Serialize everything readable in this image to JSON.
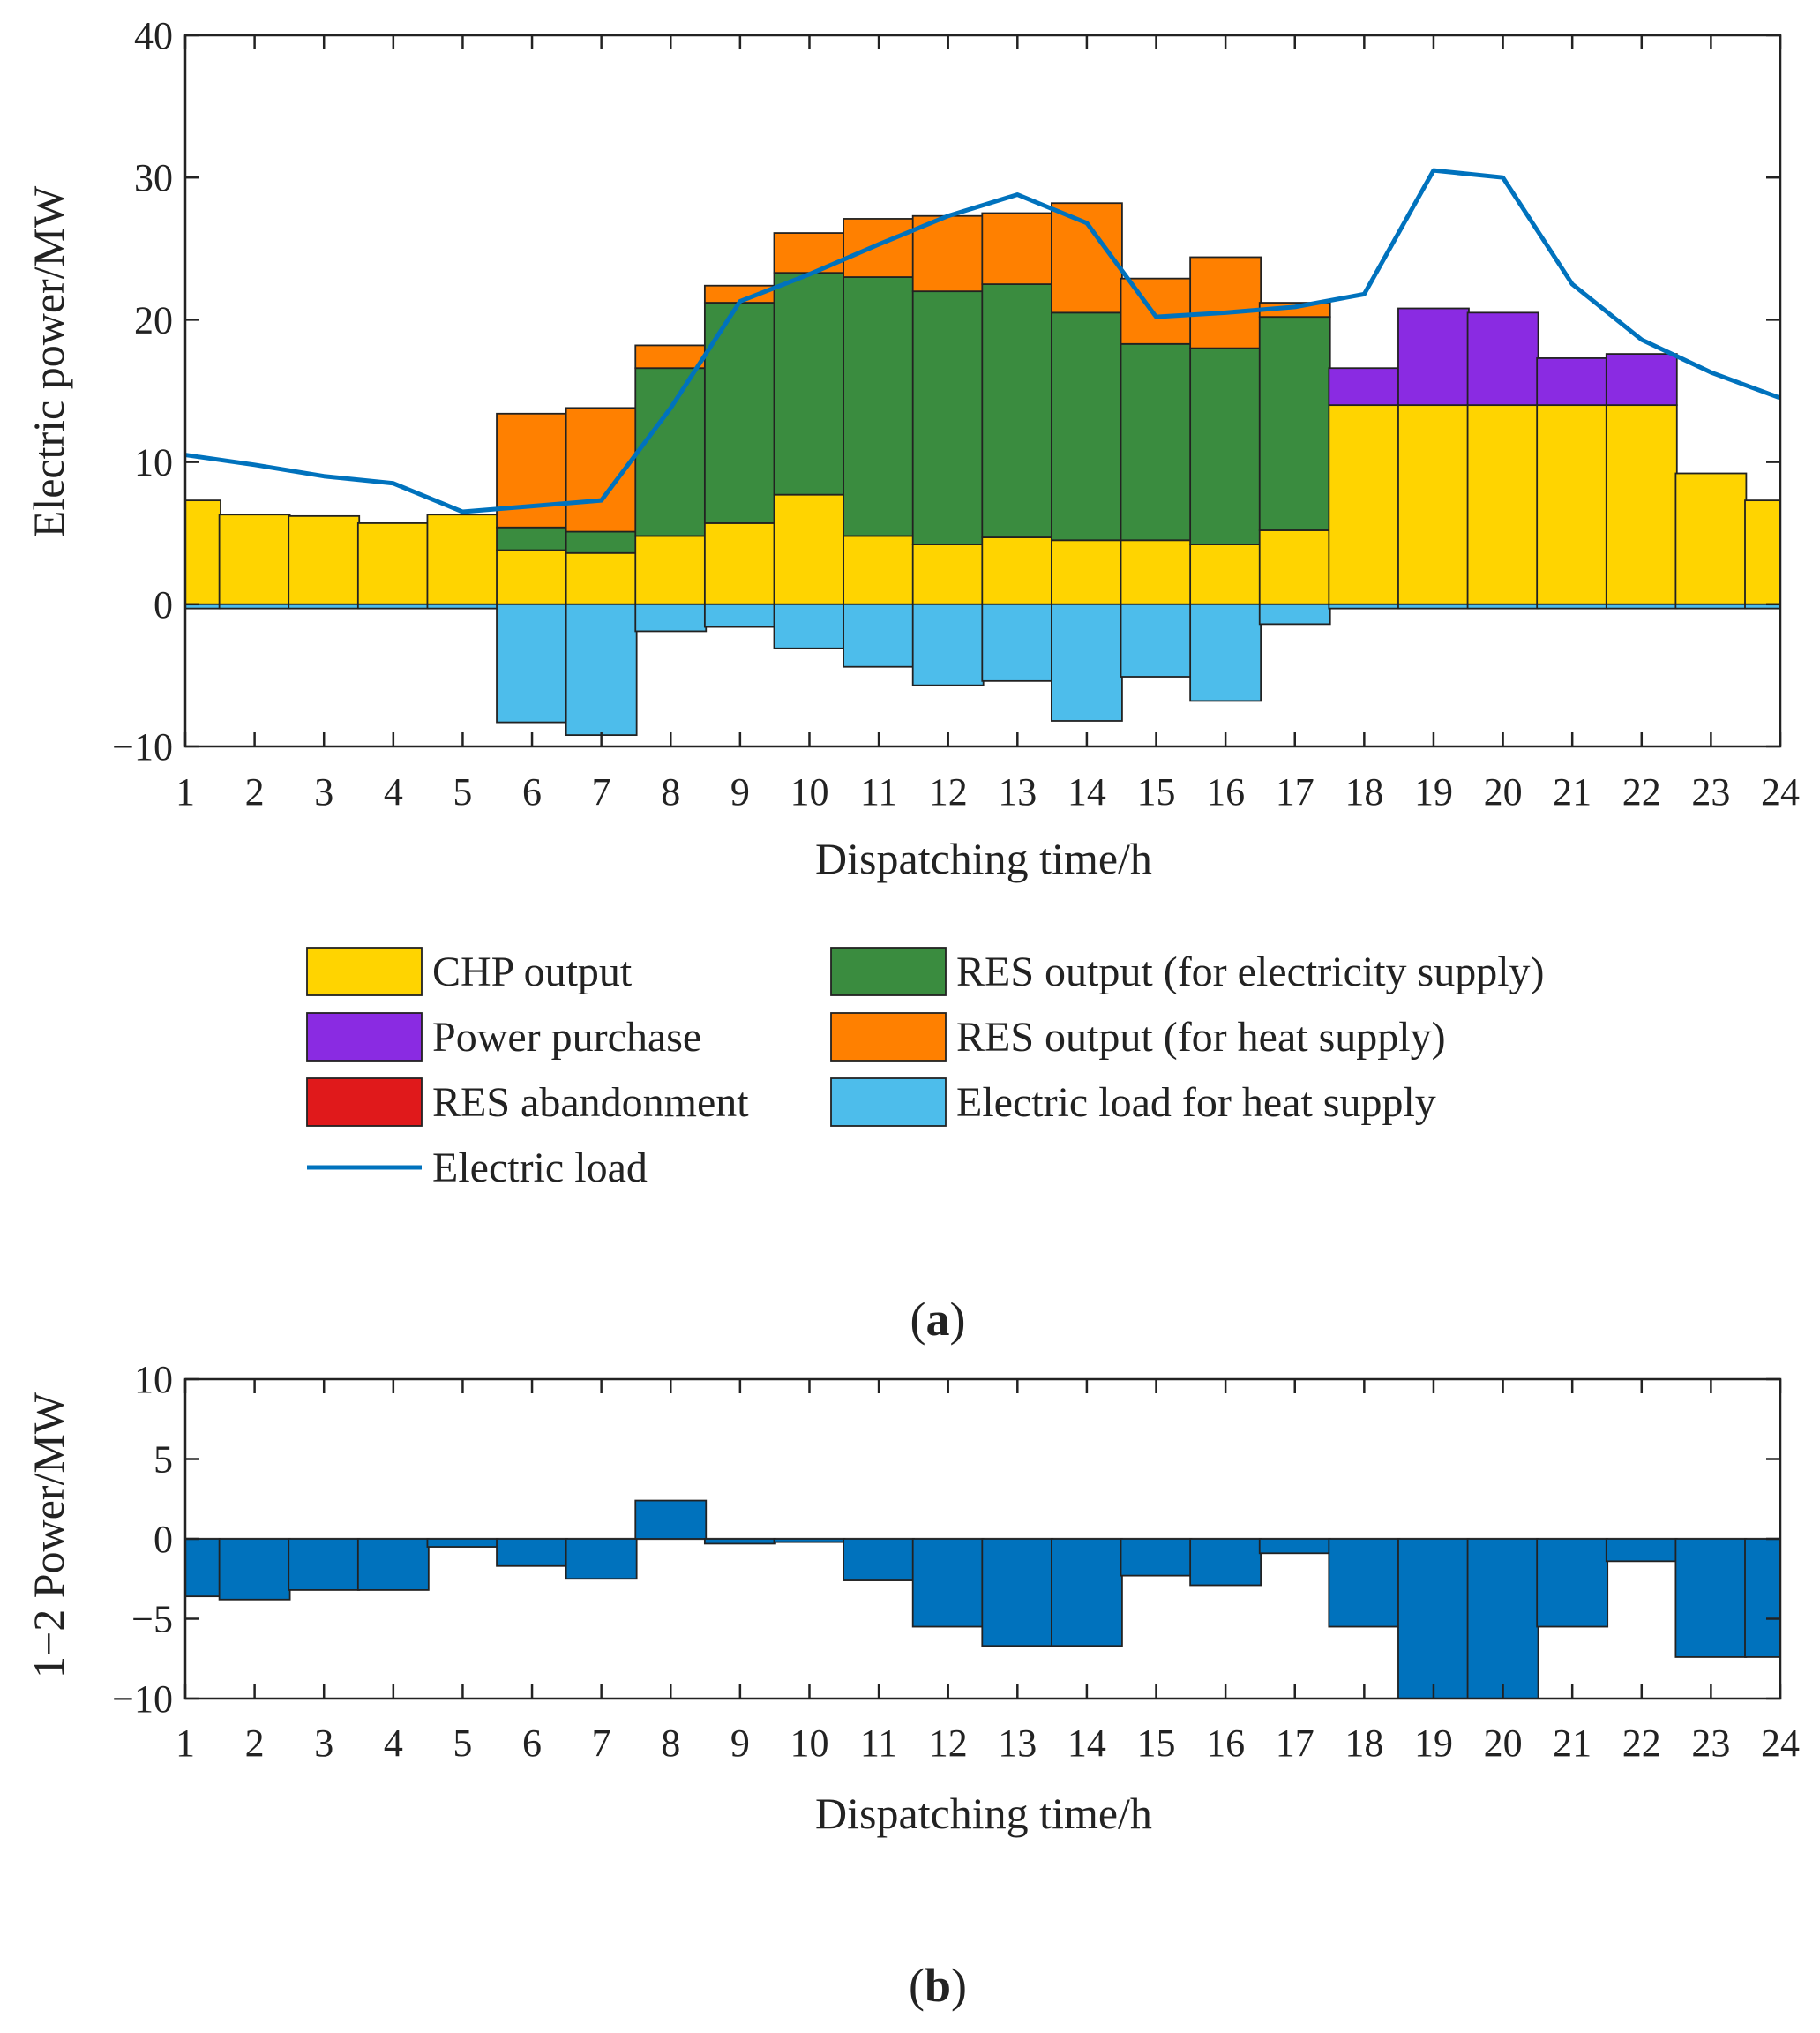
{
  "chart_data": [
    {
      "type": "bar",
      "subtype": "stacked-bar-with-line",
      "panel_label": "a",
      "xlabel": "Dispatching time/h",
      "ylabel": "Electric power/MW",
      "ylim": [
        -10,
        40
      ],
      "yticks": [
        -10,
        0,
        10,
        20,
        30,
        40
      ],
      "ytick_labels": [
        "−10",
        "0",
        "10",
        "20",
        "30",
        "40"
      ],
      "categories": [
        "1",
        "2",
        "3",
        "4",
        "5",
        "6",
        "7",
        "8",
        "9",
        "10",
        "11",
        "12",
        "13",
        "14",
        "15",
        "16",
        "17",
        "18",
        "19",
        "20",
        "21",
        "22",
        "23",
        "24"
      ],
      "legend_position": "below",
      "series": [
        {
          "name": "CHP output",
          "kind": "bar",
          "color": "#FFD400",
          "values": [
            7.3,
            6.3,
            6.2,
            5.7,
            6.3,
            3.8,
            3.6,
            4.8,
            5.7,
            7.7,
            4.8,
            4.2,
            4.7,
            4.5,
            4.5,
            4.2,
            5.2,
            14.0,
            14.0,
            14.0,
            14.0,
            14.0,
            9.2,
            7.3
          ]
        },
        {
          "name": "RES output (for electricity supply)",
          "kind": "bar",
          "color": "#3A8C3F",
          "values": [
            0,
            0,
            0,
            0,
            0,
            1.6,
            1.5,
            11.8,
            15.5,
            15.6,
            18.2,
            17.8,
            17.8,
            16.0,
            13.8,
            13.8,
            15.0,
            0,
            0,
            0,
            0,
            0,
            0,
            0
          ]
        },
        {
          "name": "Power purchase",
          "kind": "bar",
          "color": "#8A2BE2",
          "values": [
            0,
            0,
            0,
            0,
            0,
            0,
            0,
            0,
            0,
            0,
            0,
            0,
            0,
            0,
            0,
            0,
            0,
            2.6,
            6.8,
            6.5,
            3.3,
            3.6,
            0,
            0
          ]
        },
        {
          "name": "RES output (for heat supply)",
          "kind": "bar",
          "color": "#FF8000",
          "values": [
            0,
            0,
            0,
            0,
            0,
            8.0,
            8.7,
            1.6,
            1.2,
            2.8,
            4.1,
            5.3,
            5.0,
            7.7,
            4.6,
            6.4,
            1.0,
            0,
            0,
            0,
            0,
            0,
            0,
            0
          ]
        },
        {
          "name": "RES abandonment",
          "kind": "bar",
          "color": "#E0191B",
          "values": [
            0,
            0,
            0,
            0,
            0,
            0,
            0,
            0,
            0,
            0,
            0,
            0,
            0,
            0,
            0,
            0,
            0,
            0,
            0,
            0,
            0,
            0,
            0,
            0
          ]
        },
        {
          "name": "Electric load for heat supply",
          "kind": "bar",
          "color": "#4DBDEB",
          "values": [
            -0.3,
            -0.3,
            -0.3,
            -0.3,
            -0.3,
            -8.3,
            -9.2,
            -1.9,
            -1.6,
            -3.1,
            -4.4,
            -5.7,
            -5.4,
            -8.2,
            -5.1,
            -6.8,
            -1.4,
            -0.3,
            -0.3,
            -0.3,
            -0.3,
            -0.3,
            -0.3,
            -0.3
          ]
        },
        {
          "name": "Electric load",
          "kind": "line",
          "color": "#0072BD",
          "values": [
            10.5,
            9.8,
            9.0,
            8.5,
            6.5,
            6.9,
            7.3,
            13.8,
            21.3,
            23.2,
            25.3,
            27.3,
            28.8,
            26.8,
            20.2,
            20.5,
            20.9,
            21.8,
            30.5,
            30.0,
            22.5,
            18.6,
            16.3,
            14.5
          ]
        }
      ],
      "legend_order": [
        "CHP output",
        "RES output (for electricity supply)",
        "Power purchase",
        "RES output (for heat supply)",
        "RES abandonment",
        "Electric load for heat supply",
        "Electric load"
      ]
    },
    {
      "type": "bar",
      "panel_label": "b",
      "xlabel": "Dispatching time/h",
      "ylabel": "1−2 Power/MW",
      "ylim": [
        -10,
        10
      ],
      "yticks": [
        -10,
        -5,
        0,
        5,
        10
      ],
      "ytick_labels": [
        "−10",
        "−5",
        "0",
        "5",
        "10"
      ],
      "categories": [
        "1",
        "2",
        "3",
        "4",
        "5",
        "6",
        "7",
        "8",
        "9",
        "10",
        "11",
        "12",
        "13",
        "14",
        "15",
        "16",
        "17",
        "18",
        "19",
        "20",
        "21",
        "22",
        "23",
        "24"
      ],
      "series": [
        {
          "name": "1−2 Power",
          "color": "#0072BD",
          "values": [
            -3.6,
            -3.8,
            -3.2,
            -3.2,
            -0.5,
            -1.7,
            -2.5,
            2.4,
            -0.3,
            -0.2,
            -2.6,
            -5.5,
            -6.7,
            -6.7,
            -2.3,
            -2.9,
            -0.9,
            -5.5,
            -10,
            -10,
            -5.5,
            -1.4,
            -7.4,
            -7.4
          ]
        }
      ]
    }
  ]
}
